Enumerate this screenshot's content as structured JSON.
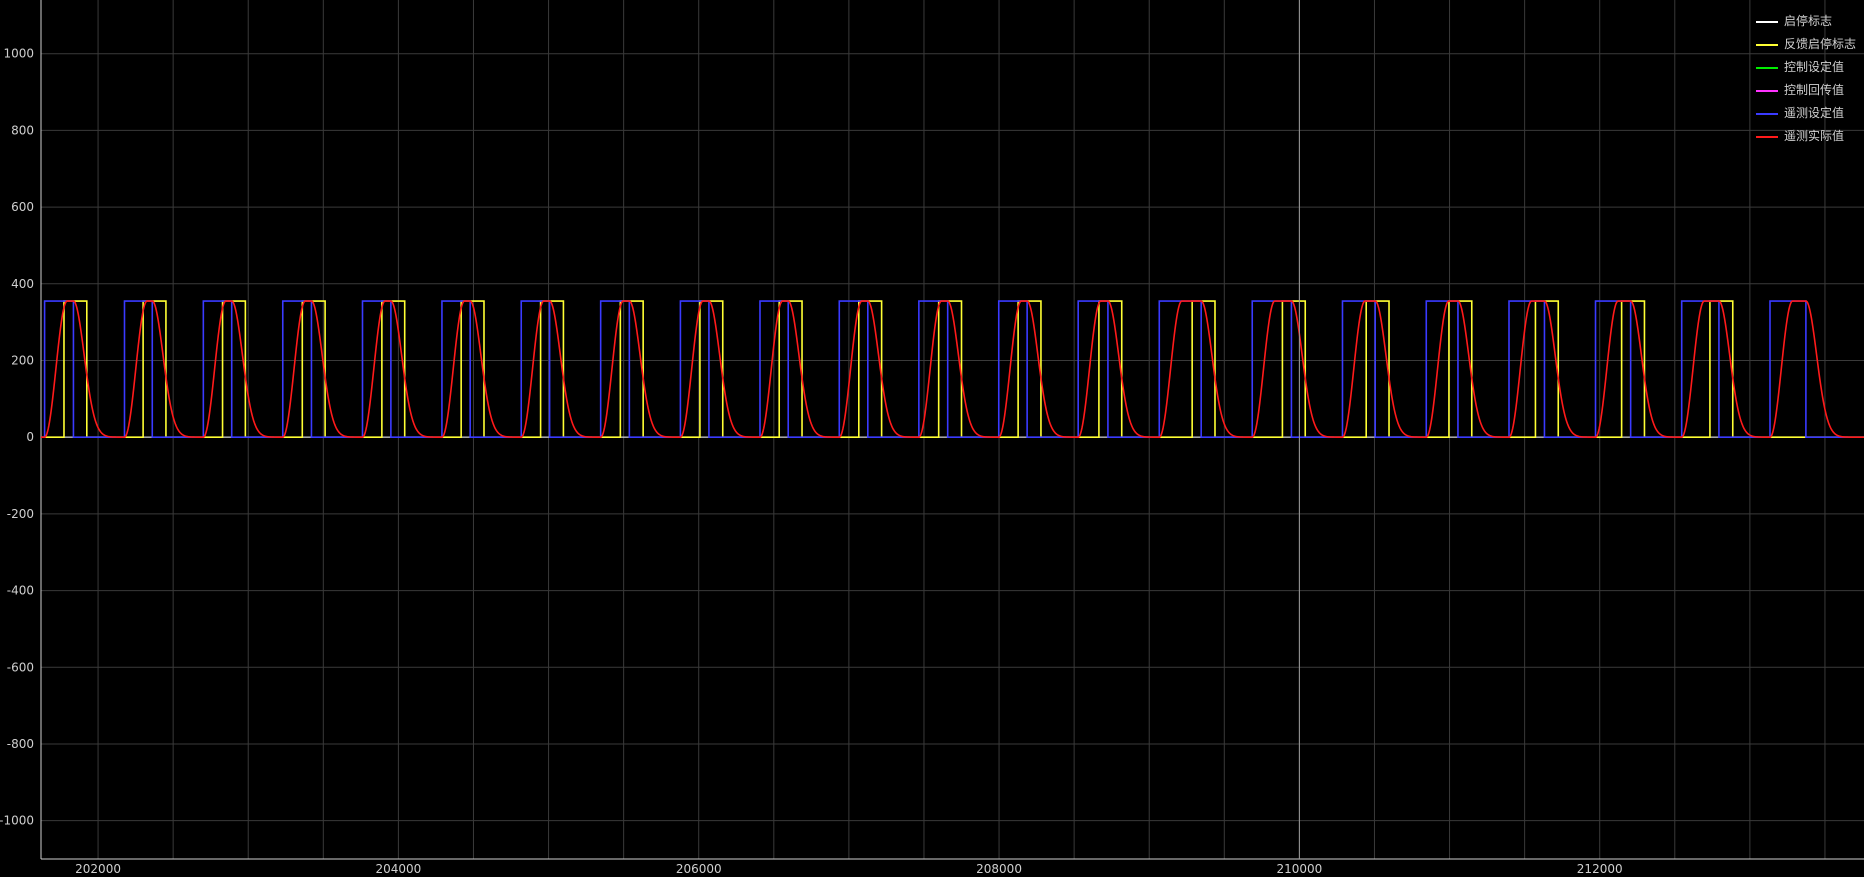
{
  "chart_data": {
    "type": "line",
    "title": "",
    "xlabel": "",
    "ylabel": "",
    "xlim": [
      201620,
      213760
    ],
    "ylim": [
      -1100,
      1140
    ],
    "grid": true,
    "legend_position": "top-right",
    "x_ticks": [
      202000,
      204000,
      206000,
      208000,
      210000,
      212000
    ],
    "x_tick_labels": [
      "202000",
      "204000",
      "206000",
      "208000",
      "210000",
      "212000"
    ],
    "y_ticks": [
      1000,
      800,
      600,
      400,
      200,
      0,
      -200,
      -400,
      -600,
      -800,
      -1000
    ],
    "y_tick_labels": [
      "1000",
      "800",
      "600",
      "400",
      "200",
      "0",
      "-200",
      "-400",
      "-600",
      "-800",
      "-1000"
    ],
    "cursor_x": 210000,
    "colors": {
      "background": "#000000",
      "grid": "#3a3a3a",
      "axis": "#cfcfcf",
      "cursor": "#9a9a9a",
      "tick_text": "#cfcfcf"
    },
    "series": [
      {
        "name": "启停标志",
        "color": "#ffffff",
        "visible_data": false
      },
      {
        "name": "反馈启停标志",
        "color": "#ffff33",
        "high": 355,
        "low": 0,
        "rise_x": [
          201773,
          202300,
          202829,
          203360,
          203890,
          204418,
          204947,
          205478,
          206008,
          206536,
          207066,
          207598,
          208127,
          208665,
          209286,
          209887,
          210445,
          210996,
          211572,
          212146,
          212734
        ],
        "fall_x": [
          201925,
          202452,
          202981,
          203512,
          204042,
          204570,
          205099,
          205630,
          206160,
          206688,
          207218,
          207750,
          208279,
          208817,
          209438,
          210039,
          210597,
          211148,
          211724,
          212298,
          212886
        ]
      },
      {
        "name": "控制设定值",
        "color": "#00ee00",
        "visible_data": false
      },
      {
        "name": "控制回传值",
        "color": "#ff33ff",
        "visible_data": false
      },
      {
        "name": "遥测设定值",
        "color": "#3a3aff",
        "high": 355,
        "low": 0,
        "rise_x": [
          201644,
          202176,
          202701,
          203230,
          203761,
          204290,
          204818,
          205347,
          205878,
          206408,
          206936,
          207466,
          207998,
          208527,
          209067,
          209686,
          210287,
          210845,
          211396,
          211972,
          212546,
          213134
        ],
        "fall_x": [
          201836,
          202361,
          202890,
          203421,
          203950,
          204478,
          205007,
          205538,
          206068,
          206596,
          207126,
          207658,
          208187,
          208725,
          209346,
          209947,
          210505,
          211056,
          211632,
          212206,
          212794,
          213373
        ]
      },
      {
        "name": "遥测实际值",
        "color": "#ff1a1a",
        "high": 355,
        "low": 0,
        "rise_x": [
          201644,
          202176,
          202701,
          203230,
          203761,
          204290,
          204818,
          205347,
          205878,
          206408,
          206936,
          207466,
          207998,
          208527,
          209067,
          209686,
          210287,
          210845,
          211396,
          211972,
          212546,
          213134
        ],
        "fall_x": [
          201836,
          202361,
          202890,
          203421,
          203950,
          204478,
          205007,
          205538,
          206068,
          206596,
          207126,
          207658,
          208187,
          208725,
          209346,
          209947,
          210505,
          211056,
          211632,
          212206,
          212794,
          213373
        ],
        "rise_duration": 150,
        "fall_duration": 180
      }
    ]
  }
}
